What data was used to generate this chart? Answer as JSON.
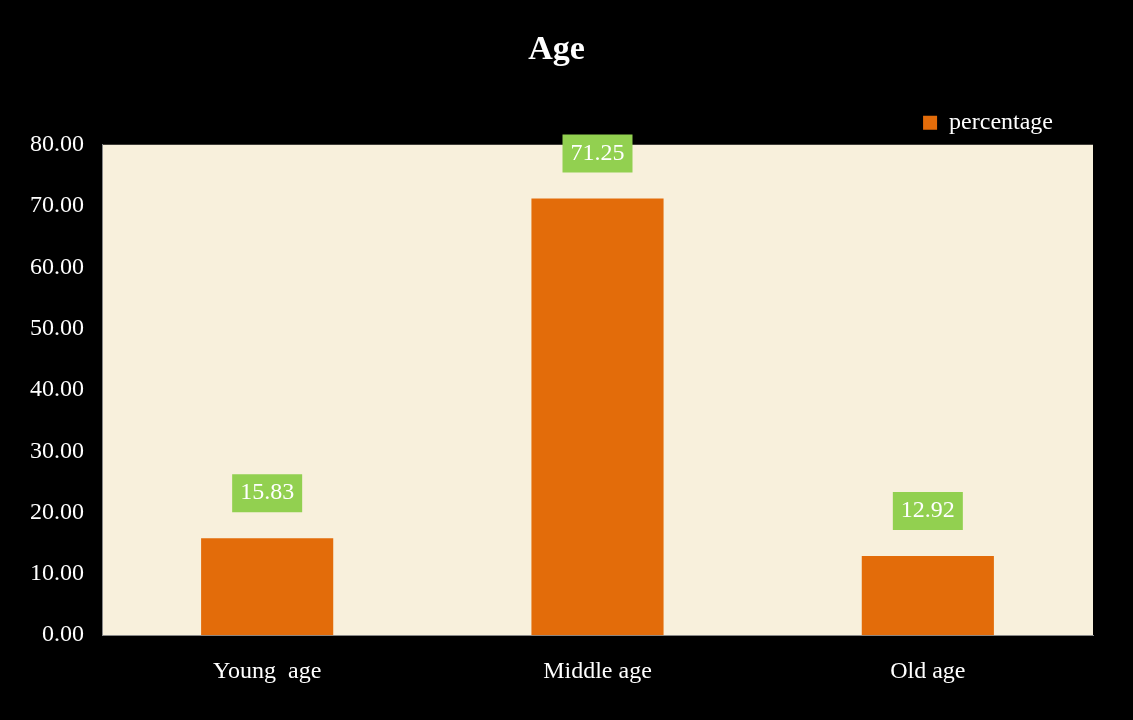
{
  "chart_data": {
    "type": "bar",
    "title": "Age",
    "categories": [
      "Young  age",
      "Middle age",
      "Old age"
    ],
    "series": [
      {
        "name": "percentage",
        "color": "#e36c0a",
        "values": [
          15.83,
          71.25,
          12.92
        ]
      }
    ],
    "ylim": [
      0,
      80
    ],
    "yticks": [
      {
        "value": 0,
        "label": "0.00"
      },
      {
        "value": 10,
        "label": "10.00"
      },
      {
        "value": 20,
        "label": "20.00"
      },
      {
        "value": 30,
        "label": "30.00"
      },
      {
        "value": 40,
        "label": "40.00"
      },
      {
        "value": 50,
        "label": "50.00"
      },
      {
        "value": 60,
        "label": "60.00"
      },
      {
        "value": 70,
        "label": "70.00"
      },
      {
        "value": 80,
        "label": "80.00"
      }
    ],
    "data_labels": true,
    "legend": "top right",
    "grid": false
  }
}
